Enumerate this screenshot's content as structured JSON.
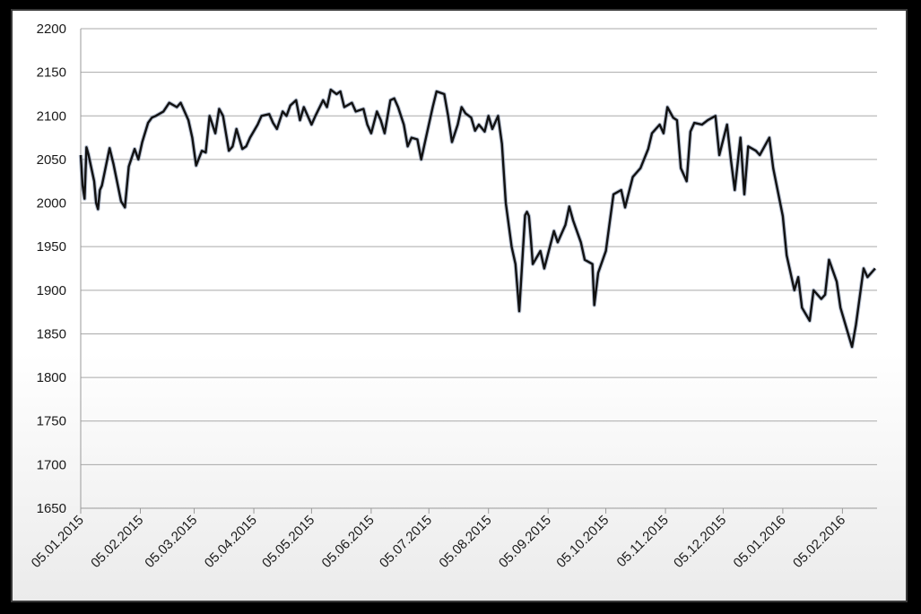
{
  "chart_data": {
    "type": "line",
    "title": "",
    "xlabel": "",
    "ylabel": "",
    "ylim": [
      1650,
      2200
    ],
    "yticks": [
      1650,
      1700,
      1750,
      1800,
      1850,
      1900,
      1950,
      2000,
      2050,
      2100,
      2150,
      2200
    ],
    "xlim": [
      "2015-01-05",
      "2016-02-23"
    ],
    "xticks": [
      "05.01.2015",
      "05.02.2015",
      "05.03.2015",
      "05.04.2015",
      "05.05.2015",
      "05.06.2015",
      "05.07.2015",
      "05.08.2015",
      "05.09.2015",
      "05.10.2015",
      "05.11.2015",
      "05.12.2015",
      "05.01.2016",
      "05.02.2016"
    ],
    "grid": "horizontal",
    "legend": "none",
    "line_color": "#111111",
    "series": [
      {
        "x": [
          "2015-01-05",
          "2015-01-06",
          "2015-01-07",
          "2015-01-08",
          "2015-01-09",
          "2015-01-12",
          "2015-01-13",
          "2015-01-14",
          "2015-01-15",
          "2015-01-16",
          "2015-01-20",
          "2015-01-22",
          "2015-01-26",
          "2015-01-28",
          "2015-01-30",
          "2015-02-02",
          "2015-02-04",
          "2015-02-06",
          "2015-02-09",
          "2015-02-11",
          "2015-02-13",
          "2015-02-17",
          "2015-02-20",
          "2015-02-24",
          "2015-02-26",
          "2015-03-02",
          "2015-03-04",
          "2015-03-06",
          "2015-03-09",
          "2015-03-11",
          "2015-03-13",
          "2015-03-16",
          "2015-03-18",
          "2015-03-20",
          "2015-03-23",
          "2015-03-25",
          "2015-03-27",
          "2015-03-30",
          "2015-04-01",
          "2015-04-03",
          "2015-04-07",
          "2015-04-09",
          "2015-04-13",
          "2015-04-15",
          "2015-04-17",
          "2015-04-20",
          "2015-04-22",
          "2015-04-24",
          "2015-04-27",
          "2015-04-29",
          "2015-05-01",
          "2015-05-05",
          "2015-05-07",
          "2015-05-11",
          "2015-05-13",
          "2015-05-15",
          "2015-05-18",
          "2015-05-20",
          "2015-05-22",
          "2015-05-26",
          "2015-05-28",
          "2015-06-01",
          "2015-06-03",
          "2015-06-05",
          "2015-06-08",
          "2015-06-10",
          "2015-06-12",
          "2015-06-15",
          "2015-06-17",
          "2015-06-19",
          "2015-06-22",
          "2015-06-24",
          "2015-06-26",
          "2015-06-29",
          "2015-07-01",
          "2015-07-03",
          "2015-07-07",
          "2015-07-09",
          "2015-07-13",
          "2015-07-15",
          "2015-07-17",
          "2015-07-20",
          "2015-07-22",
          "2015-07-24",
          "2015-07-27",
          "2015-07-29",
          "2015-07-31",
          "2015-08-03",
          "2015-08-05",
          "2015-08-07",
          "2015-08-10",
          "2015-08-12",
          "2015-08-14",
          "2015-08-17",
          "2015-08-19",
          "2015-08-21",
          "2015-08-24",
          "2015-08-25",
          "2015-08-26",
          "2015-08-27",
          "2015-08-28",
          "2015-09-01",
          "2015-09-03",
          "2015-09-08",
          "2015-09-10",
          "2015-09-14",
          "2015-09-16",
          "2015-09-18",
          "2015-09-22",
          "2015-09-24",
          "2015-09-28",
          "2015-09-29",
          "2015-10-01",
          "2015-10-05",
          "2015-10-07",
          "2015-10-09",
          "2015-10-13",
          "2015-10-15",
          "2015-10-19",
          "2015-10-21",
          "2015-10-23",
          "2015-10-27",
          "2015-10-29",
          "2015-11-02",
          "2015-11-04",
          "2015-11-06",
          "2015-11-09",
          "2015-11-11",
          "2015-11-13",
          "2015-11-16",
          "2015-11-18",
          "2015-11-20",
          "2015-11-24",
          "2015-11-27",
          "2015-12-01",
          "2015-12-03",
          "2015-12-07",
          "2015-12-09",
          "2015-12-11",
          "2015-12-14",
          "2015-12-16",
          "2015-12-18",
          "2015-12-22",
          "2015-12-24",
          "2015-12-29",
          "2015-12-31",
          "2016-01-05",
          "2016-01-07",
          "2016-01-11",
          "2016-01-13",
          "2016-01-15",
          "2016-01-19",
          "2016-01-21",
          "2016-01-25",
          "2016-01-27",
          "2016-01-29",
          "2016-02-02",
          "2016-02-04",
          "2016-02-08",
          "2016-02-10",
          "2016-02-12",
          "2016-02-16",
          "2016-02-18",
          "2016-02-22"
        ],
        "values": [
          2055,
          2020,
          2005,
          2064,
          2056,
          2025,
          2000,
          1993,
          2015,
          2020,
          2063,
          2045,
          2002,
          1995,
          2042,
          2062,
          2050,
          2070,
          2092,
          2098,
          2100,
          2105,
          2115,
          2110,
          2115,
          2095,
          2075,
          2043,
          2060,
          2058,
          2100,
          2080,
          2108,
          2100,
          2060,
          2065,
          2085,
          2062,
          2065,
          2075,
          2090,
          2100,
          2102,
          2092,
          2085,
          2105,
          2100,
          2112,
          2118,
          2095,
          2110,
          2090,
          2100,
          2118,
          2110,
          2130,
          2125,
          2128,
          2110,
          2115,
          2105,
          2108,
          2090,
          2080,
          2105,
          2095,
          2080,
          2118,
          2120,
          2110,
          2090,
          2065,
          2075,
          2073,
          2050,
          2070,
          2110,
          2128,
          2125,
          2100,
          2070,
          2090,
          2110,
          2103,
          2098,
          2083,
          2090,
          2082,
          2100,
          2085,
          2100,
          2068,
          2000,
          1950,
          1930,
          1876,
          1986,
          1990,
          1985,
          1960,
          1930,
          1945,
          1925,
          1968,
          1955,
          1975,
          1996,
          1980,
          1955,
          1935,
          1930,
          1883,
          1920,
          1945,
          1978,
          2010,
          2015,
          1995,
          2030,
          2035,
          2040,
          2062,
          2080,
          2090,
          2080,
          2110,
          2098,
          2095,
          2040,
          2025,
          2082,
          2092,
          2090,
          2095,
          2100,
          2055,
          2090,
          2050,
          2015,
          2075,
          2010,
          2065,
          2060,
          2055,
          2075,
          2040,
          1985,
          1940,
          1900,
          1915,
          1880,
          1865,
          1900,
          1890,
          1895,
          1935,
          1910,
          1880,
          1850,
          1835,
          1860,
          1925,
          1915,
          1925
        ]
      }
    ]
  }
}
